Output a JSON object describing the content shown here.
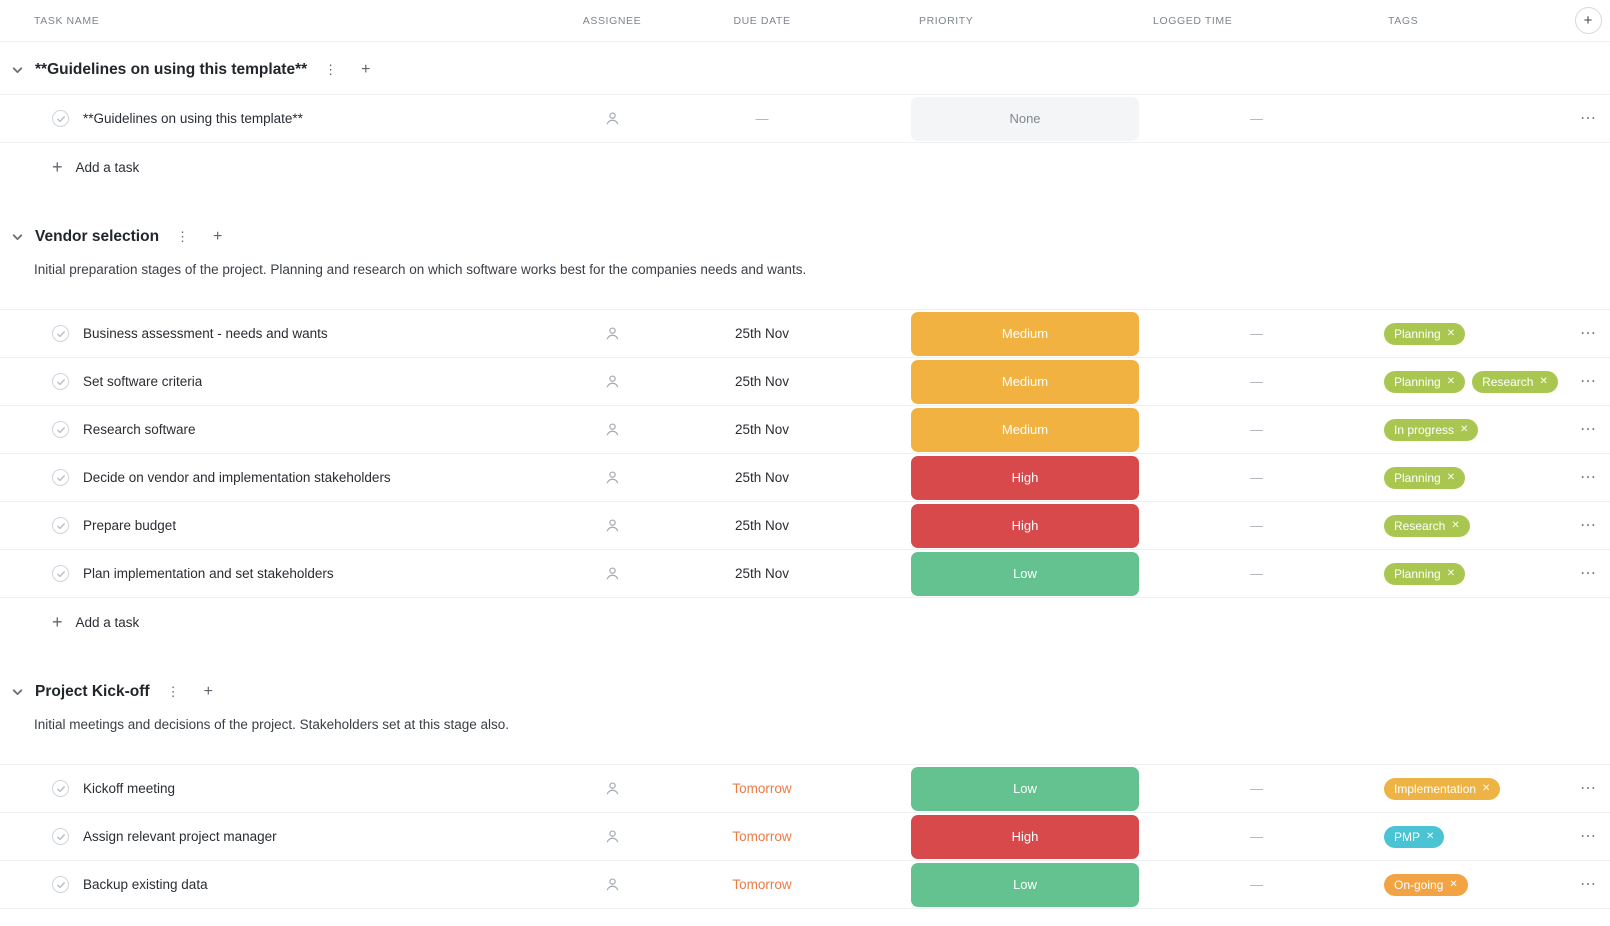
{
  "columns": [
    "TASK NAME",
    "ASSIGNEE",
    "DUE DATE",
    "PRIORITY",
    "LOGGED TIME",
    "TAGS"
  ],
  "labels": {
    "add_task": "Add a task"
  },
  "icons": {
    "plus": "+",
    "menu": "⋮",
    "more": "⋯",
    "tag_remove": "✕"
  },
  "colors": {
    "priority": {
      "medium": "#f1b242",
      "high": "#d8494c",
      "low": "#63c290",
      "none_bg": "#f4f5f6",
      "none_text": "#82878f"
    },
    "tag": {
      "green": "#a9c750",
      "amber": "#edb445",
      "cyan": "#4ac3d4",
      "orange": "#f2a444"
    },
    "due_tomorrow": "#ee7b45"
  },
  "sections": [
    {
      "title": "**Guidelines on using this template**",
      "description": "",
      "show_add_task": true,
      "tasks": [
        {
          "name": "**Guidelines on using this template**",
          "due": {
            "text": "—",
            "style": "dash"
          },
          "priority": {
            "label": "None",
            "style": "none"
          },
          "logged": "—",
          "tags": []
        }
      ]
    },
    {
      "title": "Vendor selection",
      "description": "Initial preparation stages of the project. Planning and research on which software works best for the companies needs and wants.",
      "show_add_task": true,
      "tasks": [
        {
          "name": "Business assessment - needs and wants",
          "due": {
            "text": "25th Nov",
            "style": "normal"
          },
          "priority": {
            "label": "Medium",
            "style": "medium"
          },
          "logged": "—",
          "tags": [
            {
              "label": "Planning",
              "style": "green"
            }
          ]
        },
        {
          "name": "Set software criteria",
          "due": {
            "text": "25th Nov",
            "style": "normal"
          },
          "priority": {
            "label": "Medium",
            "style": "medium"
          },
          "logged": "—",
          "tags": [
            {
              "label": "Planning",
              "style": "green"
            },
            {
              "label": "Research",
              "style": "green"
            }
          ]
        },
        {
          "name": "Research software",
          "due": {
            "text": "25th Nov",
            "style": "normal"
          },
          "priority": {
            "label": "Medium",
            "style": "medium"
          },
          "logged": "—",
          "tags": [
            {
              "label": "In progress",
              "style": "green"
            }
          ]
        },
        {
          "name": "Decide on vendor and implementation stakeholders",
          "due": {
            "text": "25th Nov",
            "style": "normal"
          },
          "priority": {
            "label": "High",
            "style": "high"
          },
          "logged": "—",
          "tags": [
            {
              "label": "Planning",
              "style": "green"
            }
          ]
        },
        {
          "name": "Prepare budget",
          "due": {
            "text": "25th Nov",
            "style": "normal"
          },
          "priority": {
            "label": "High",
            "style": "high"
          },
          "logged": "—",
          "tags": [
            {
              "label": "Research",
              "style": "green"
            }
          ]
        },
        {
          "name": "Plan implementation and set stakeholders",
          "due": {
            "text": "25th Nov",
            "style": "normal"
          },
          "priority": {
            "label": "Low",
            "style": "low"
          },
          "logged": "—",
          "tags": [
            {
              "label": "Planning",
              "style": "green"
            }
          ]
        }
      ]
    },
    {
      "title": "Project Kick-off",
      "description": "Initial meetings and decisions of the project. Stakeholders set at this stage also.",
      "show_add_task": false,
      "tasks": [
        {
          "name": "Kickoff meeting",
          "due": {
            "text": "Tomorrow",
            "style": "tomorrow"
          },
          "priority": {
            "label": "Low",
            "style": "low"
          },
          "logged": "—",
          "tags": [
            {
              "label": "Implementation",
              "style": "amber"
            }
          ]
        },
        {
          "name": "Assign relevant project manager",
          "due": {
            "text": "Tomorrow",
            "style": "tomorrow"
          },
          "priority": {
            "label": "High",
            "style": "high"
          },
          "logged": "—",
          "tags": [
            {
              "label": "PMP",
              "style": "cyan"
            }
          ]
        },
        {
          "name": "Backup existing data",
          "due": {
            "text": "Tomorrow",
            "style": "tomorrow"
          },
          "priority": {
            "label": "Low",
            "style": "low"
          },
          "logged": "—",
          "tags": [
            {
              "label": "On-going",
              "style": "orange"
            }
          ]
        }
      ]
    }
  ]
}
